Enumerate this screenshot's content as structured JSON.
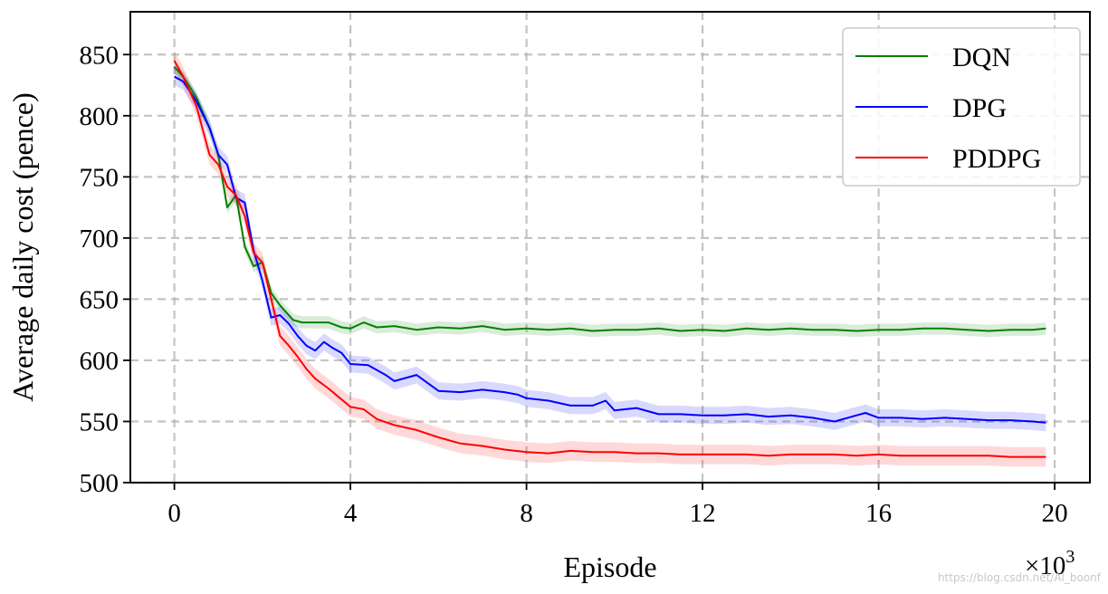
{
  "chart_data": {
    "type": "line",
    "xlabel": "Episode",
    "ylabel": "Average daily cost (pence)",
    "x_multiplier": "×10",
    "x_multiplier_exp": "3",
    "xlim": [
      -1,
      20.8
    ],
    "ylim": [
      500,
      885
    ],
    "xticks": [
      0,
      4,
      8,
      12,
      16,
      20
    ],
    "yticks": [
      500,
      550,
      600,
      650,
      700,
      750,
      800,
      850
    ],
    "grid": true,
    "legend_position": "top-right",
    "series": [
      {
        "name": "DQN",
        "color": "#008000",
        "band": 5,
        "points": [
          [
            0,
            840
          ],
          [
            0.2,
            832
          ],
          [
            0.5,
            815
          ],
          [
            0.8,
            790
          ],
          [
            1.0,
            768
          ],
          [
            1.2,
            725
          ],
          [
            1.4,
            735
          ],
          [
            1.6,
            693
          ],
          [
            1.8,
            677
          ],
          [
            2.0,
            680
          ],
          [
            2.2,
            655
          ],
          [
            2.4,
            645
          ],
          [
            2.7,
            633
          ],
          [
            2.9,
            631
          ],
          [
            3.2,
            631
          ],
          [
            3.5,
            631
          ],
          [
            3.8,
            627
          ],
          [
            4.0,
            626
          ],
          [
            4.3,
            631
          ],
          [
            4.6,
            627
          ],
          [
            5.0,
            628
          ],
          [
            5.5,
            625
          ],
          [
            6.0,
            627
          ],
          [
            6.5,
            626
          ],
          [
            7.0,
            628
          ],
          [
            7.5,
            625
          ],
          [
            8.0,
            626
          ],
          [
            8.5,
            625
          ],
          [
            9.0,
            626
          ],
          [
            9.5,
            624
          ],
          [
            10.0,
            625
          ],
          [
            10.5,
            625
          ],
          [
            11.0,
            626
          ],
          [
            11.5,
            624
          ],
          [
            12.0,
            625
          ],
          [
            12.5,
            624
          ],
          [
            13.0,
            626
          ],
          [
            13.5,
            625
          ],
          [
            14.0,
            626
          ],
          [
            14.5,
            625
          ],
          [
            15.0,
            625
          ],
          [
            15.5,
            624
          ],
          [
            16.0,
            625
          ],
          [
            16.5,
            625
          ],
          [
            17.0,
            626
          ],
          [
            17.5,
            626
          ],
          [
            18.0,
            625
          ],
          [
            18.5,
            624
          ],
          [
            19.0,
            625
          ],
          [
            19.5,
            625
          ],
          [
            19.8,
            626
          ]
        ]
      },
      {
        "name": "DPG",
        "color": "#0000ff",
        "band": 7,
        "points": [
          [
            0,
            832
          ],
          [
            0.2,
            828
          ],
          [
            0.5,
            812
          ],
          [
            0.8,
            790
          ],
          [
            1.0,
            768
          ],
          [
            1.2,
            760
          ],
          [
            1.4,
            733
          ],
          [
            1.6,
            729
          ],
          [
            1.8,
            690
          ],
          [
            2.0,
            665
          ],
          [
            2.2,
            635
          ],
          [
            2.4,
            637
          ],
          [
            2.6,
            630
          ],
          [
            2.8,
            620
          ],
          [
            3.0,
            612
          ],
          [
            3.2,
            608
          ],
          [
            3.4,
            615
          ],
          [
            3.6,
            610
          ],
          [
            3.8,
            606
          ],
          [
            4.0,
            597
          ],
          [
            4.4,
            596
          ],
          [
            4.8,
            588
          ],
          [
            5.0,
            583
          ],
          [
            5.5,
            588
          ],
          [
            6.0,
            575
          ],
          [
            6.5,
            574
          ],
          [
            7.0,
            576
          ],
          [
            7.5,
            574
          ],
          [
            7.8,
            572
          ],
          [
            8.0,
            569
          ],
          [
            8.5,
            567
          ],
          [
            9.0,
            563
          ],
          [
            9.5,
            563
          ],
          [
            9.8,
            567
          ],
          [
            10.0,
            559
          ],
          [
            10.5,
            561
          ],
          [
            11.0,
            556
          ],
          [
            11.5,
            556
          ],
          [
            12.0,
            555
          ],
          [
            12.5,
            555
          ],
          [
            13.0,
            556
          ],
          [
            13.5,
            554
          ],
          [
            14.0,
            555
          ],
          [
            14.5,
            553
          ],
          [
            15.0,
            550
          ],
          [
            15.5,
            555
          ],
          [
            15.7,
            557
          ],
          [
            16.0,
            553
          ],
          [
            16.5,
            553
          ],
          [
            17.0,
            552
          ],
          [
            17.5,
            553
          ],
          [
            18.0,
            552
          ],
          [
            18.5,
            551
          ],
          [
            19.0,
            551
          ],
          [
            19.5,
            550
          ],
          [
            19.8,
            549
          ]
        ]
      },
      {
        "name": "PDDPG",
        "color": "#ff0000",
        "band": 8,
        "points": [
          [
            0,
            845
          ],
          [
            0.2,
            832
          ],
          [
            0.5,
            808
          ],
          [
            0.8,
            768
          ],
          [
            1.0,
            760
          ],
          [
            1.2,
            742
          ],
          [
            1.4,
            735
          ],
          [
            1.6,
            718
          ],
          [
            1.8,
            688
          ],
          [
            2.0,
            680
          ],
          [
            2.2,
            650
          ],
          [
            2.4,
            620
          ],
          [
            2.6,
            612
          ],
          [
            2.8,
            603
          ],
          [
            3.0,
            593
          ],
          [
            3.2,
            585
          ],
          [
            3.5,
            577
          ],
          [
            3.8,
            568
          ],
          [
            4.0,
            562
          ],
          [
            4.3,
            560
          ],
          [
            4.6,
            552
          ],
          [
            5.0,
            547
          ],
          [
            5.5,
            543
          ],
          [
            6.0,
            537
          ],
          [
            6.5,
            532
          ],
          [
            7.0,
            530
          ],
          [
            7.5,
            527
          ],
          [
            8.0,
            525
          ],
          [
            8.5,
            524
          ],
          [
            9.0,
            526
          ],
          [
            9.5,
            525
          ],
          [
            10.0,
            525
          ],
          [
            10.5,
            524
          ],
          [
            11.0,
            524
          ],
          [
            11.5,
            523
          ],
          [
            12.0,
            523
          ],
          [
            12.5,
            523
          ],
          [
            13.0,
            523
          ],
          [
            13.5,
            522
          ],
          [
            14.0,
            523
          ],
          [
            14.5,
            523
          ],
          [
            15.0,
            523
          ],
          [
            15.5,
            522
          ],
          [
            16.0,
            523
          ],
          [
            16.5,
            522
          ],
          [
            17.0,
            522
          ],
          [
            17.5,
            522
          ],
          [
            18.0,
            522
          ],
          [
            18.5,
            522
          ],
          [
            19.0,
            521
          ],
          [
            19.5,
            521
          ],
          [
            19.8,
            521
          ]
        ]
      }
    ]
  },
  "watermark": "https://blog.csdn.net/Al_boonf"
}
